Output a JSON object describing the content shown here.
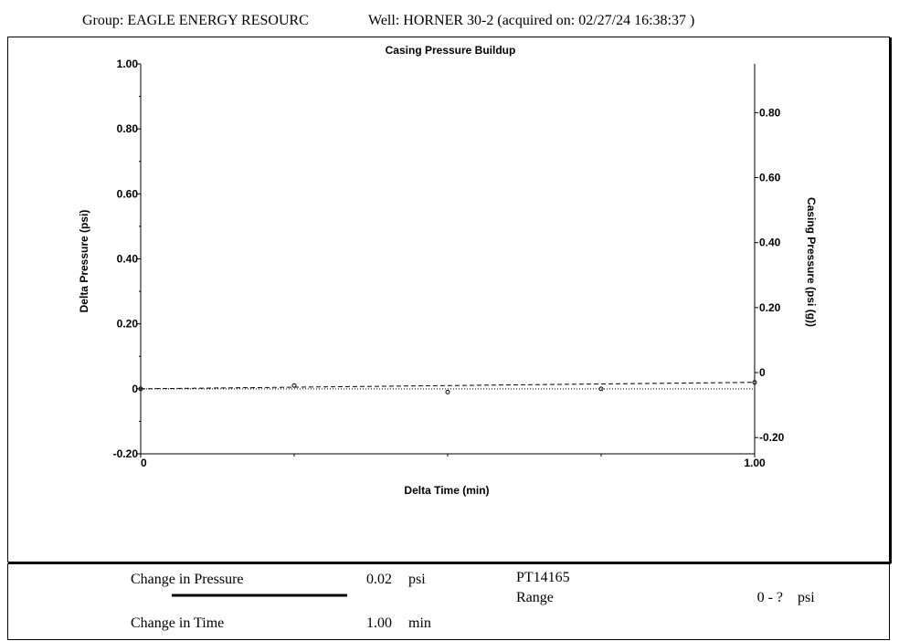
{
  "header": {
    "group": "Group: EAGLE ENERGY RESOURC",
    "well": "Well: HORNER 30-2 (acquired on: 02/27/24 16:38:37 )"
  },
  "chart_data": {
    "type": "scatter",
    "title": "Casing Pressure Buildup",
    "xlabel": "Delta Time (min)",
    "ylabel": "Delta Pressure (psi)",
    "y2label": "Casing Pressure (psi (g))",
    "xlim": [
      0,
      1
    ],
    "ylim": [
      -0.2,
      1.0
    ],
    "y2lim": [
      -0.25,
      0.95
    ],
    "x_ticks": [
      {
        "v": 0,
        "label": "0"
      },
      {
        "v": 1,
        "label": "1.00"
      }
    ],
    "y_ticks": [
      {
        "v": 1.0,
        "label": "1.00"
      },
      {
        "v": 0.8,
        "label": "0.80"
      },
      {
        "v": 0.6,
        "label": "0.60"
      },
      {
        "v": 0.4,
        "label": "0.40"
      },
      {
        "v": 0.2,
        "label": "0.20"
      },
      {
        "v": 0.0,
        "label": "0"
      },
      {
        "v": -0.2,
        "label": "-0.20"
      }
    ],
    "y2_ticks": [
      {
        "v": 0.8,
        "label": "0.80"
      },
      {
        "v": 0.6,
        "label": "0.60"
      },
      {
        "v": 0.4,
        "label": "0.40"
      },
      {
        "v": 0.2,
        "label": "0.20"
      },
      {
        "v": 0.0,
        "label": "0"
      },
      {
        "v": -0.2,
        "label": "-0.20"
      }
    ],
    "series": [
      {
        "values": [
          {
            "x": 0,
            "y": 0
          },
          {
            "x": 0.25,
            "y": 0.01
          },
          {
            "x": 0.5,
            "y": -0.01
          },
          {
            "x": 0.75,
            "y": 0
          },
          {
            "x": 1.0,
            "y": 0.02
          }
        ]
      }
    ],
    "trend_line": {
      "x": [
        0,
        1.0
      ],
      "y": [
        0,
        0.02
      ]
    },
    "baseline": {
      "x": [
        0,
        1.0
      ],
      "y": [
        0,
        0
      ]
    }
  },
  "footer": {
    "change_pressure_label": "Change in Pressure",
    "change_pressure_value": "0.02",
    "change_pressure_unit": "psi",
    "change_time_label": "Change in Time",
    "change_time_value": "1.00",
    "change_time_unit": "min",
    "gauge_id": "PT14165",
    "range_label": "Range",
    "range_value": "0 - ?",
    "range_unit": "psi"
  }
}
